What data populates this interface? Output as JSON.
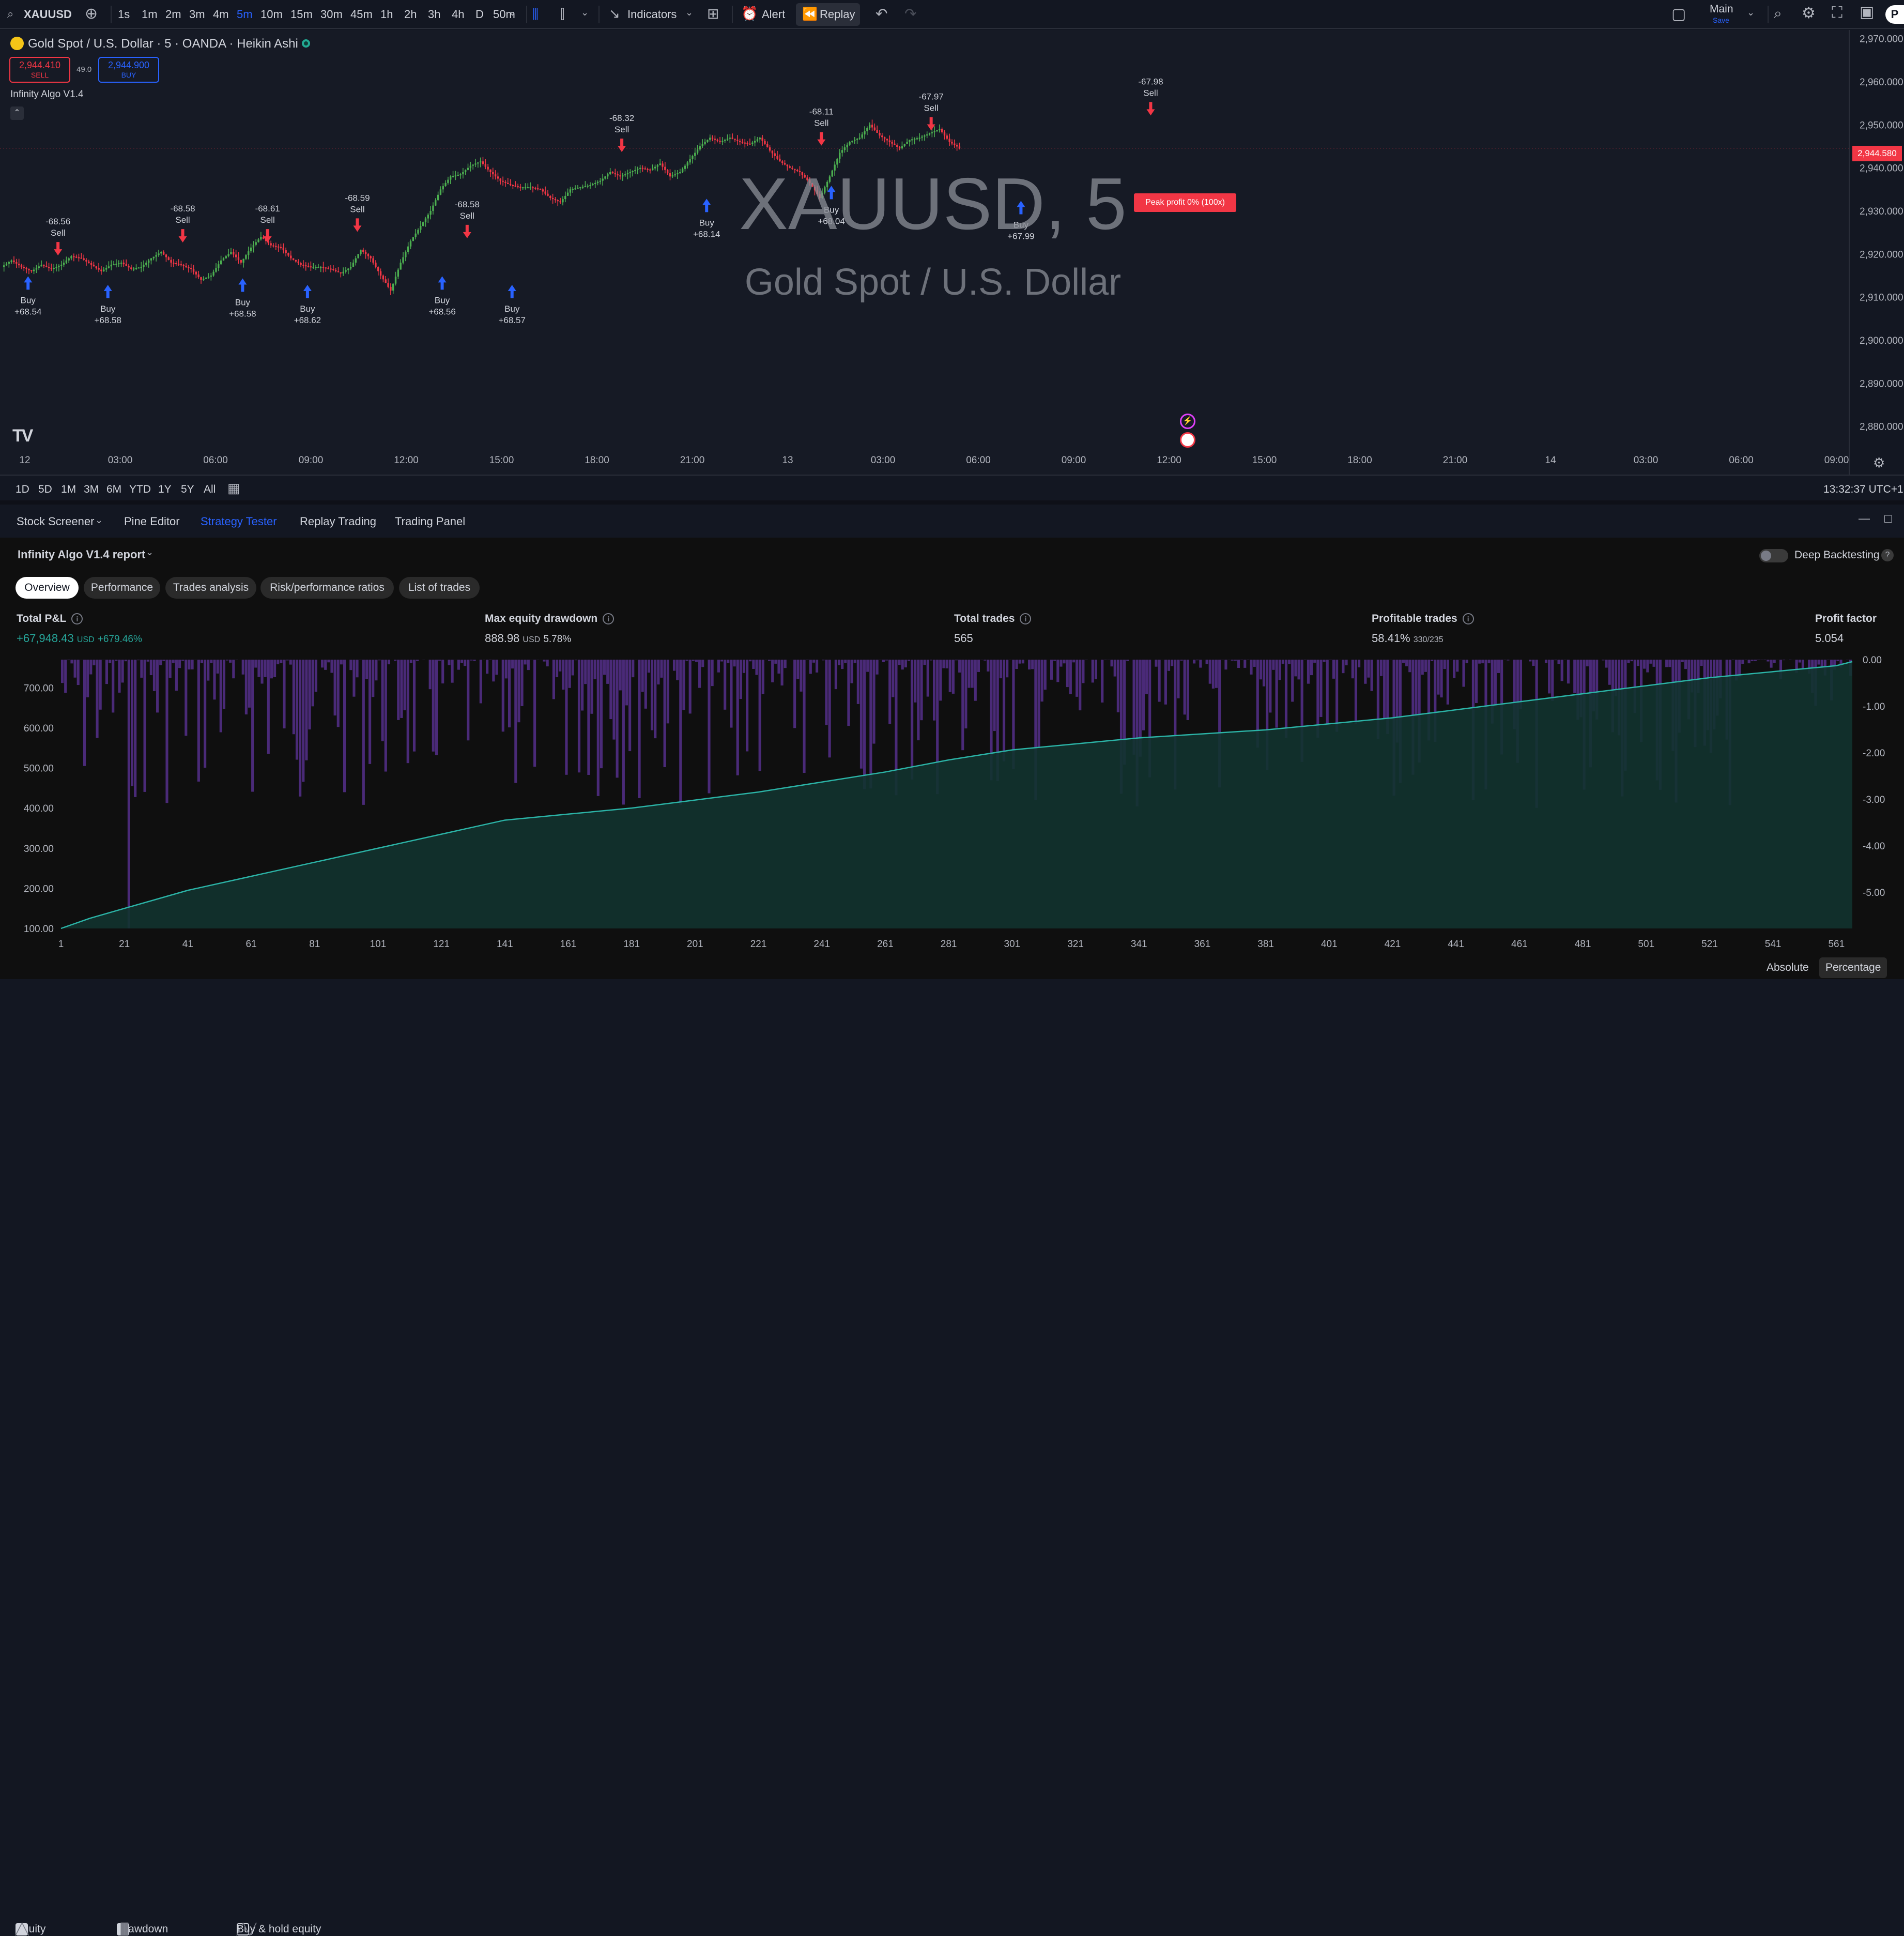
{
  "toolbar": {
    "symbol": "XAUUSD",
    "timeframes": [
      "1s",
      "1m",
      "2m",
      "3m",
      "4m",
      "5m",
      "10m",
      "15m",
      "30m",
      "45m",
      "1h",
      "2h",
      "3h",
      "4h",
      "D",
      "50m"
    ],
    "active_timeframe": "5m",
    "indicators_label": "Indicators",
    "alert_label": "Alert",
    "replay_label": "Replay",
    "layout_name": "Main",
    "layout_sub": "Save",
    "avatar_letter": "P"
  },
  "chart_header": {
    "title": "Gold Spot / U.S. Dollar · 5 · OANDA · Heikin Ashi",
    "sell_price": "2,944.410",
    "sell_label": "SELL",
    "spread": "49.0",
    "buy_price": "2,944.900",
    "buy_label": "BUY",
    "indicator_name": "Infinity Algo V1.4"
  },
  "watermark": {
    "symbol": "XAUUSD, 5",
    "name": "Gold Spot / U.S. Dollar"
  },
  "chart_data": [
    {
      "type": "line",
      "title": "",
      "price_axis_ticks": [
        "2,970.000",
        "2,960.000",
        "2,950.000",
        "2,940.000",
        "2,930.000",
        "2,920.000",
        "2,910.000",
        "2,900.000",
        "2,890.000",
        "2,880.000"
      ],
      "ylim": [
        2876,
        2972
      ],
      "current_price": "2,944.580",
      "time_axis_ticks": [
        "12",
        "03:00",
        "06:00",
        "09:00",
        "12:00",
        "15:00",
        "18:00",
        "21:00",
        "13",
        "03:00",
        "06:00",
        "09:00",
        "12:00",
        "15:00",
        "18:00",
        "21:00",
        "14",
        "03:00",
        "06:00",
        "09:00"
      ],
      "price_path": [
        [
          0,
          2917
        ],
        [
          2,
          2918.5
        ],
        [
          4,
          2917
        ],
        [
          6,
          2916
        ],
        [
          8,
          2917.5
        ],
        [
          10,
          2916.5
        ],
        [
          12,
          2917.5
        ],
        [
          14,
          2919.5
        ],
        [
          16,
          2919
        ],
        [
          18,
          2917.5
        ],
        [
          20,
          2916
        ],
        [
          22,
          2917.5
        ],
        [
          24,
          2918
        ],
        [
          26,
          2916.5
        ],
        [
          28,
          2917
        ],
        [
          30,
          2919
        ],
        [
          32,
          2920.5
        ],
        [
          34,
          2918
        ],
        [
          36,
          2917.5
        ],
        [
          38,
          2916.5
        ],
        [
          40,
          2914
        ],
        [
          42,
          2915
        ],
        [
          44,
          2918.5
        ],
        [
          46,
          2920.5
        ],
        [
          48,
          2918
        ],
        [
          50,
          2921.5
        ],
        [
          52,
          2924
        ],
        [
          54,
          2922
        ],
        [
          56,
          2921.5
        ],
        [
          58,
          2919
        ],
        [
          60,
          2917.5
        ],
        [
          62,
          2917
        ],
        [
          64,
          2917
        ],
        [
          66,
          2916.5
        ],
        [
          68,
          2915.5
        ],
        [
          70,
          2917
        ],
        [
          72,
          2921
        ],
        [
          74,
          2919
        ],
        [
          76,
          2915
        ],
        [
          78,
          2911.5
        ],
        [
          80,
          2918
        ],
        [
          82,
          2923
        ],
        [
          84,
          2926.5
        ],
        [
          86,
          2930
        ],
        [
          88,
          2935
        ],
        [
          90,
          2938
        ],
        [
          92,
          2938.5
        ],
        [
          94,
          2940.5
        ],
        [
          96,
          2941.5
        ],
        [
          98,
          2939
        ],
        [
          100,
          2937
        ],
        [
          102,
          2936
        ],
        [
          104,
          2935.5
        ],
        [
          106,
          2935.5
        ],
        [
          108,
          2935
        ],
        [
          110,
          2933
        ],
        [
          112,
          2932
        ],
        [
          114,
          2935
        ],
        [
          116,
          2935.5
        ],
        [
          118,
          2936
        ],
        [
          120,
          2937
        ],
        [
          122,
          2939
        ],
        [
          124,
          2938
        ],
        [
          126,
          2939
        ],
        [
          128,
          2940
        ],
        [
          130,
          2939.5
        ],
        [
          132,
          2941
        ],
        [
          134,
          2938
        ],
        [
          136,
          2939
        ],
        [
          138,
          2942
        ],
        [
          140,
          2945
        ],
        [
          142,
          2947
        ],
        [
          144,
          2946
        ],
        [
          146,
          2947
        ],
        [
          148,
          2946
        ],
        [
          150,
          2945.5
        ],
        [
          152,
          2947
        ],
        [
          154,
          2944
        ],
        [
          156,
          2941.5
        ],
        [
          158,
          2940
        ],
        [
          160,
          2939
        ],
        [
          162,
          2936.5
        ],
        [
          164,
          2933
        ],
        [
          166,
          2938
        ],
        [
          168,
          2943.5
        ],
        [
          170,
          2946
        ],
        [
          172,
          2947
        ],
        [
          174,
          2950
        ],
        [
          176,
          2947.5
        ],
        [
          178,
          2946
        ],
        [
          180,
          2944.5
        ],
        [
          182,
          2946.5
        ],
        [
          184,
          2947
        ],
        [
          186,
          2948
        ],
        [
          188,
          2949
        ],
        [
          190,
          2946
        ],
        [
          192,
          2944.6
        ]
      ],
      "time_index_range": [
        0,
        370
      ],
      "signals": [
        {
          "type": "buy",
          "label": "Buy",
          "value": "+68.54",
          "t": 5,
          "price": 2917
        },
        {
          "type": "sell",
          "label": "Sell",
          "value": "-68.56",
          "t": 11,
          "price": 2917.5
        },
        {
          "type": "buy",
          "label": "Buy",
          "value": "+68.58",
          "t": 21,
          "price": 2915
        },
        {
          "type": "sell",
          "label": "Sell",
          "value": "-68.58",
          "t": 36,
          "price": 2920.5
        },
        {
          "type": "buy",
          "label": "Buy",
          "value": "+68.58",
          "t": 48,
          "price": 2916.5
        },
        {
          "type": "sell",
          "label": "Sell",
          "value": "-68.61",
          "t": 53,
          "price": 2920.5
        },
        {
          "type": "buy",
          "label": "Buy",
          "value": "+68.62",
          "t": 61,
          "price": 2915
        },
        {
          "type": "sell",
          "label": "Sell",
          "value": "-68.59",
          "t": 71,
          "price": 2923
        },
        {
          "type": "buy",
          "label": "Buy",
          "value": "+68.56",
          "t": 88,
          "price": 2917
        },
        {
          "type": "sell",
          "label": "Sell",
          "value": "-68.58",
          "t": 93,
          "price": 2921.5
        },
        {
          "type": "buy",
          "label": "Buy",
          "value": "+68.57",
          "t": 102,
          "price": 2915
        },
        {
          "type": "sell",
          "label": "Sell",
          "value": "-68.32",
          "t": 124,
          "price": 2941.5
        },
        {
          "type": "buy",
          "label": "Buy",
          "value": "+68.14",
          "t": 141,
          "price": 2935
        },
        {
          "type": "sell",
          "label": "Sell",
          "value": "-68.11",
          "t": 164,
          "price": 2943
        },
        {
          "type": "buy",
          "label": "Buy",
          "value": "+68.04",
          "t": 166,
          "price": 2938
        },
        {
          "type": "sell",
          "label": "Sell",
          "value": "-67.97",
          "t": 186,
          "price": 2946.5
        },
        {
          "type": "buy",
          "label": "Buy",
          "value": "+67.99",
          "t": 204,
          "price": 2934.5
        },
        {
          "type": "sell",
          "label": "Sell",
          "value": "-67.98",
          "t": 230,
          "price": 2950
        }
      ],
      "peak_profit_label": "Peak profit 0% (100x)",
      "range_buttons": [
        "1D",
        "5D",
        "1M",
        "3M",
        "6M",
        "YTD",
        "1Y",
        "5Y",
        "All"
      ],
      "clock": "13:32:37 UTC+1"
    },
    {
      "type": "area",
      "title": "",
      "x_ticks": [
        1,
        21,
        41,
        61,
        81,
        101,
        121,
        141,
        161,
        181,
        201,
        221,
        241,
        261,
        281,
        301,
        321,
        341,
        361,
        381,
        401,
        421,
        441,
        461,
        481,
        501,
        521,
        541,
        561
      ],
      "xlim": [
        1,
        566
      ],
      "left_axis_ticks": [
        "700.00",
        "600.00",
        "500.00",
        "400.00",
        "300.00",
        "200.00",
        "100.00"
      ],
      "left_ylim": [
        100,
        770
      ],
      "right_axis_ticks": [
        "0.00",
        "-1.00",
        "-2.00",
        "-3.00",
        "-4.00",
        "-5.00"
      ],
      "right_ylim": [
        -5.78,
        0
      ],
      "equity_path": [
        [
          1,
          100
        ],
        [
          10,
          125
        ],
        [
          21,
          150
        ],
        [
          41,
          195
        ],
        [
          61,
          230
        ],
        [
          81,
          265
        ],
        [
          101,
          300
        ],
        [
          121,
          335
        ],
        [
          141,
          370
        ],
        [
          161,
          385
        ],
        [
          181,
          400
        ],
        [
          201,
          420
        ],
        [
          221,
          440
        ],
        [
          241,
          465
        ],
        [
          261,
          490
        ],
        [
          281,
          520
        ],
        [
          301,
          545
        ],
        [
          321,
          560
        ],
        [
          341,
          575
        ],
        [
          361,
          585
        ],
        [
          381,
          595
        ],
        [
          401,
          610
        ],
        [
          421,
          625
        ],
        [
          441,
          645
        ],
        [
          461,
          665
        ],
        [
          481,
          685
        ],
        [
          501,
          705
        ],
        [
          521,
          725
        ],
        [
          541,
          740
        ],
        [
          561,
          755
        ],
        [
          566,
          765
        ]
      ],
      "drawdown_seed": 7,
      "max_drawdown_pct": -5.78
    }
  ],
  "panel": {
    "tabs": [
      "Stock Screener",
      "Pine Editor",
      "Strategy Tester",
      "Replay Trading",
      "Trading Panel"
    ],
    "active_tab": "Strategy Tester",
    "report_title": "Infinity Algo V1.4 report",
    "deep_backtesting": "Deep Backtesting",
    "subtabs": [
      "Overview",
      "Performance",
      "Trades analysis",
      "Risk/performance ratios",
      "List of trades"
    ],
    "metrics": {
      "total_pnl_label": "Total P&L",
      "total_pnl_value": "+67,948.43",
      "total_pnl_unit": "USD",
      "total_pnl_pct": "+679.46%",
      "max_dd_label": "Max equity drawdown",
      "max_dd_value": "888.98",
      "max_dd_unit": "USD",
      "max_dd_pct": "5.78%",
      "total_trades_label": "Total trades",
      "total_trades_value": "565",
      "profitable_label": "Profitable trades",
      "profitable_value": "58.41%",
      "profitable_ratio": "330/235",
      "profit_factor_label": "Profit factor",
      "profit_factor_value": "5.054"
    },
    "legend": {
      "equity": "Equity",
      "drawdown": "Drawdown",
      "buy_hold": "Buy & hold equity",
      "absolute": "Absolute",
      "percentage": "Percentage"
    }
  },
  "colors": {
    "up": "#26a69a",
    "green_candle": "#4caf50",
    "red_candle": "#f23645",
    "accent": "#2962ff",
    "equity_line": "#2bb3a6",
    "equity_fill": "#12332f",
    "drawdown": "#4a2a78"
  }
}
